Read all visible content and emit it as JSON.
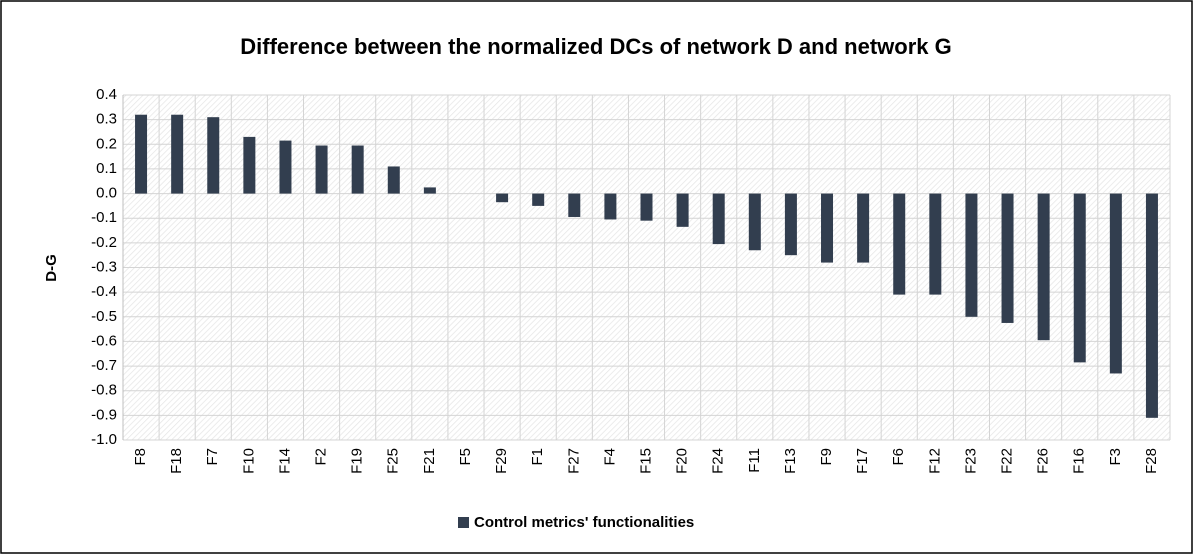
{
  "chart_data": {
    "type": "bar",
    "title": "Difference between the normalized DCs of network D and network G",
    "y_label": "D-G",
    "categories": [
      "F8",
      "F18",
      "F7",
      "F10",
      "F14",
      "F2",
      "F19",
      "F25",
      "F21",
      "F5",
      "F29",
      "F1",
      "F27",
      "F4",
      "F15",
      "F20",
      "F24",
      "F11",
      "F13",
      "F9",
      "F17",
      "F6",
      "F12",
      "F23",
      "F22",
      "F26",
      "F16",
      "F3",
      "F28"
    ],
    "series": [
      {
        "name": "Control metrics' functionalities",
        "color": "#323e4f",
        "values": [
          0.32,
          0.32,
          0.31,
          0.23,
          0.215,
          0.195,
          0.195,
          0.11,
          0.025,
          0,
          -0.035,
          -0.05,
          -0.095,
          -0.105,
          -0.11,
          -0.135,
          -0.205,
          -0.23,
          -0.25,
          -0.28,
          -0.28,
          -0.41,
          -0.41,
          -0.5,
          -0.525,
          -0.595,
          -0.685,
          -0.73,
          -0.91
        ]
      }
    ],
    "ylim": [
      -1,
      0.4
    ],
    "yticks": [
      0.4,
      0.3,
      0.2,
      0.1,
      {
        "value": 0,
        "label": "0.0"
      },
      -0.1,
      -0.2,
      -0.3,
      -0.4,
      -0.5,
      -0.6,
      -0.7,
      -0.8,
      -0.9,
      {
        "value": -1,
        "label": "-1.0"
      }
    ],
    "grid": true,
    "legend": "bottom"
  }
}
